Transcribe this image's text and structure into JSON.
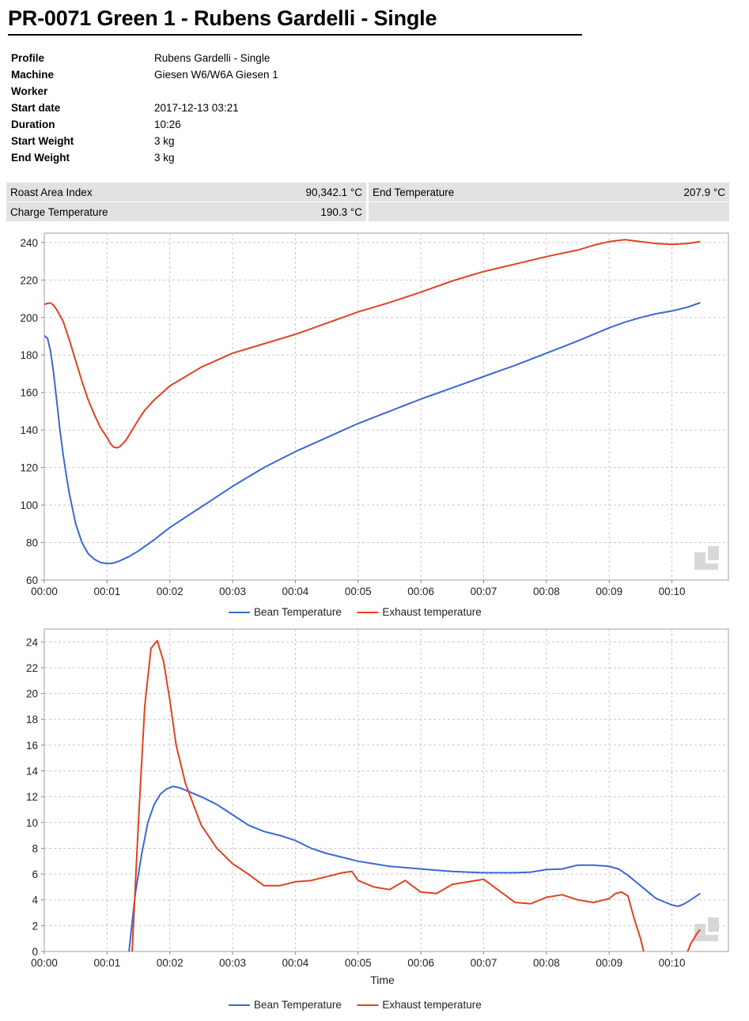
{
  "report": {
    "title": "PR-0071 Green 1 - Rubens Gardelli - Single"
  },
  "details": [
    {
      "label": "Profile",
      "value": "Rubens Gardelli - Single"
    },
    {
      "label": "Machine",
      "value": "Giesen W6/W6A Giesen 1"
    },
    {
      "label": "Worker",
      "value": ""
    },
    {
      "label": "Start date",
      "value": "2017-12-13 03:21"
    },
    {
      "label": "Duration",
      "value": "10:26"
    },
    {
      "label": "Start Weight",
      "value": "3 kg"
    },
    {
      "label": "End Weight",
      "value": "3 kg"
    }
  ],
  "stats": {
    "roast_area_index_label": "Roast Area Index",
    "roast_area_index_value": "90,342.1 °C",
    "end_temperature_label": "End Temperature",
    "end_temperature_value": "207.9 °C",
    "charge_temperature_label": "Charge Temperature",
    "charge_temperature_value": "190.3 °C"
  },
  "colors": {
    "bean": "#3b68d6",
    "exhaust": "#e0431f",
    "grid": "#c8c8c8",
    "stat_background": "#e2e2e2"
  },
  "chart_data": [
    {
      "type": "line",
      "title": "",
      "xlabel": "",
      "ylabel": "",
      "x_unit": "minutes",
      "xlim": [
        0,
        10.9
      ],
      "ylim": [
        60,
        245
      ],
      "x_ticks": [
        "00:00",
        "00:01",
        "00:02",
        "00:03",
        "00:04",
        "00:05",
        "00:06",
        "00:07",
        "00:08",
        "00:09",
        "00:10"
      ],
      "y_ticks": [
        60,
        80,
        100,
        120,
        140,
        160,
        180,
        200,
        220,
        240
      ],
      "grid": true,
      "legend": "bottom-center",
      "series": [
        {
          "name": "Bean Temperature",
          "color": "#3b68d6",
          "x": [
            0,
            0.05,
            0.1,
            0.15,
            0.2,
            0.25,
            0.3,
            0.35,
            0.4,
            0.45,
            0.5,
            0.6,
            0.7,
            0.8,
            0.9,
            1.0,
            1.1,
            1.2,
            1.35,
            1.5,
            1.75,
            2.0,
            2.5,
            3.0,
            3.5,
            4.0,
            4.5,
            5.0,
            5.5,
            6.0,
            6.5,
            7.0,
            7.5,
            8.0,
            8.5,
            9.0,
            9.25,
            9.5,
            9.75,
            10.0,
            10.25,
            10.45
          ],
          "y": [
            190.3,
            189,
            182,
            170,
            155,
            140,
            127,
            116,
            106,
            98,
            90,
            80,
            74,
            71,
            69.3,
            68.8,
            69,
            70.2,
            72.5,
            75.5,
            81.5,
            88,
            99,
            110,
            120,
            128.5,
            136,
            143.5,
            150,
            156.5,
            162.5,
            168.5,
            174.5,
            181,
            187.5,
            194.5,
            197.5,
            200,
            202,
            203.5,
            205.5,
            207.9
          ]
        },
        {
          "name": "Exhaust temperature",
          "color": "#e0431f",
          "x": [
            0,
            0.05,
            0.1,
            0.15,
            0.2,
            0.3,
            0.4,
            0.5,
            0.6,
            0.7,
            0.8,
            0.9,
            1.0,
            1.05,
            1.1,
            1.15,
            1.2,
            1.3,
            1.4,
            1.5,
            1.6,
            1.75,
            2.0,
            2.25,
            2.5,
            3.0,
            3.5,
            4.0,
            4.5,
            5.0,
            5.5,
            6.0,
            6.5,
            7.0,
            7.5,
            8.0,
            8.5,
            8.75,
            9.0,
            9.25,
            9.5,
            9.75,
            10.0,
            10.25,
            10.45
          ],
          "y": [
            207,
            207.5,
            207.8,
            206.5,
            204,
            198,
            188,
            177,
            166,
            156,
            148,
            141,
            136,
            133,
            131,
            130.5,
            131,
            134.5,
            140,
            145.5,
            150.5,
            156,
            163.5,
            168.5,
            173.5,
            181,
            186,
            191,
            197,
            203,
            208,
            213.5,
            219.5,
            224.5,
            228.5,
            232.5,
            236,
            238.5,
            240.5,
            241.5,
            240.5,
            239.5,
            239,
            239.5,
            240.5
          ]
        }
      ]
    },
    {
      "type": "line",
      "title": "",
      "xlabel": "Time",
      "ylabel": "",
      "x_unit": "minutes",
      "xlim": [
        0,
        10.9
      ],
      "ylim": [
        0,
        25
      ],
      "x_ticks": [
        "00:00",
        "00:01",
        "00:02",
        "00:03",
        "00:04",
        "00:05",
        "00:06",
        "00:07",
        "00:08",
        "00:09",
        "00:10"
      ],
      "y_ticks": [
        0,
        2,
        4,
        6,
        8,
        10,
        12,
        14,
        16,
        18,
        20,
        22,
        24
      ],
      "grid": true,
      "legend": "bottom-center",
      "series": [
        {
          "name": "Bean Temperature",
          "color": "#3b68d6",
          "x": [
            1.35,
            1.45,
            1.55,
            1.65,
            1.75,
            1.85,
            1.95,
            2.05,
            2.15,
            2.3,
            2.5,
            2.75,
            3.0,
            3.25,
            3.5,
            3.75,
            4.0,
            4.25,
            4.5,
            4.75,
            5.0,
            5.25,
            5.5,
            5.75,
            6.0,
            6.25,
            6.5,
            6.75,
            7.0,
            7.25,
            7.5,
            7.75,
            8.0,
            8.25,
            8.5,
            8.75,
            9.0,
            9.15,
            9.3,
            9.45,
            9.6,
            9.75,
            9.9,
            10.0,
            10.1,
            10.2,
            10.3,
            10.45
          ],
          "y": [
            0,
            4.5,
            7.5,
            10,
            11.4,
            12.2,
            12.6,
            12.8,
            12.7,
            12.4,
            12.0,
            11.4,
            10.6,
            9.8,
            9.3,
            9.0,
            8.6,
            8.0,
            7.6,
            7.3,
            7.0,
            6.8,
            6.6,
            6.5,
            6.4,
            6.3,
            6.2,
            6.15,
            6.1,
            6.1,
            6.1,
            6.15,
            6.35,
            6.4,
            6.7,
            6.7,
            6.6,
            6.4,
            5.9,
            5.3,
            4.7,
            4.1,
            3.8,
            3.6,
            3.5,
            3.7,
            4.0,
            4.5
          ]
        },
        {
          "name": "Exhaust temperature",
          "color": "#e0431f",
          "x": [
            1.4,
            1.5,
            1.6,
            1.7,
            1.8,
            1.9,
            2.0,
            2.1,
            2.25,
            2.5,
            2.75,
            3.0,
            3.25,
            3.5,
            3.75,
            4.0,
            4.25,
            4.5,
            4.75,
            4.9,
            5.0,
            5.25,
            5.5,
            5.75,
            6.0,
            6.25,
            6.5,
            6.75,
            7.0,
            7.25,
            7.5,
            7.75,
            8.0,
            8.25,
            8.5,
            8.75,
            9.0,
            9.1,
            9.2,
            9.3,
            9.4,
            9.5,
            9.55
          ],
          "y": [
            0,
            10,
            19,
            23.5,
            24.1,
            22.5,
            19.5,
            16,
            13,
            9.8,
            8,
            6.8,
            6.0,
            5.1,
            5.1,
            5.4,
            5.5,
            5.8,
            6.1,
            6.2,
            5.5,
            5.0,
            4.8,
            5.5,
            4.6,
            4.5,
            5.2,
            5.4,
            5.6,
            4.7,
            3.8,
            3.7,
            4.2,
            4.4,
            4.0,
            3.8,
            4.1,
            4.5,
            4.6,
            4.3,
            2.5,
            1.0,
            0
          ]
        },
        {
          "name": "Exhaust temperature",
          "color": "#e0431f",
          "x": [
            10.25,
            10.3,
            10.35,
            10.4,
            10.45
          ],
          "y": [
            0,
            0.6,
            1.0,
            1.4,
            1.7
          ]
        }
      ]
    }
  ]
}
